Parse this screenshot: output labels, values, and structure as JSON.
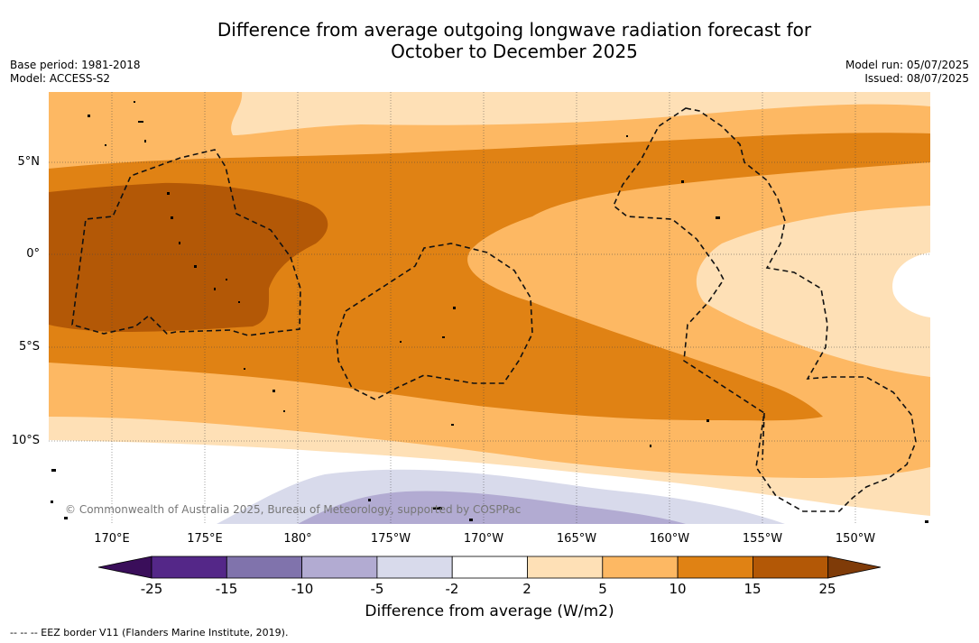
{
  "title": {
    "line1": "Difference from average outgoing longwave radiation forecast for",
    "line2": "October to December 2025"
  },
  "meta": {
    "base_period": "Base period: 1981-2018",
    "model": "Model: ACCESS-S2",
    "model_run": "Model run: 05/07/2025",
    "issued": "Issued: 08/07/2025"
  },
  "map": {
    "lat_labels": [
      "5°N",
      "0°",
      "5°S",
      "10°S"
    ],
    "lon_labels": [
      "170°E",
      "175°E",
      "180°",
      "175°W",
      "170°W",
      "165°W",
      "160°W",
      "155°W",
      "150°W"
    ],
    "copyright": "© Commonwealth of Australia 2025, Bureau of Meteorology, supported by COSPPac"
  },
  "colorbar": {
    "tick_labels": [
      "-25",
      "-15",
      "-10",
      "-5",
      "-2",
      "2",
      "5",
      "10",
      "15",
      "25"
    ],
    "colors": [
      "#3a0e5a",
      "#542788",
      "#8073ac",
      "#b2abd2",
      "#d8daeb",
      "#ffffff",
      "#fee0b6",
      "#fdb863",
      "#e08214",
      "#b35806",
      "#7f3b08"
    ],
    "label": "Difference from average (W/m2)"
  },
  "legend": {
    "eez": "--  --  -- EEZ border V11 (Flanders Marine Institute, 2019)."
  }
}
